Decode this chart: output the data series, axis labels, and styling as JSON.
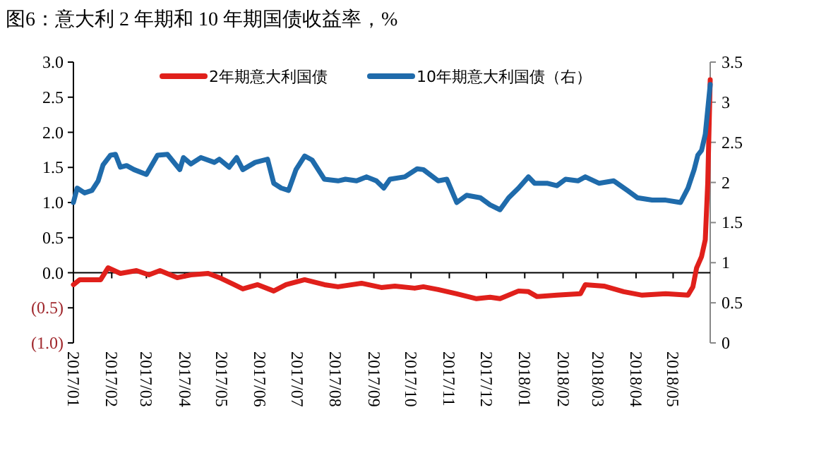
{
  "chart_data": {
    "type": "line",
    "title": "图6：意大利 2 年期和 10 年期国债收益率，%",
    "xlim": [
      "2017-01-01",
      "2018-05-31"
    ],
    "xticks": [
      {
        "value": "2017-01",
        "label": "2017/01"
      },
      {
        "value": "2017-02",
        "label": "2017/02"
      },
      {
        "value": "2017-03",
        "label": "2017/03"
      },
      {
        "value": "2017-04",
        "label": "2017/04"
      },
      {
        "value": "2017-05",
        "label": "2017/05"
      },
      {
        "value": "2017-06",
        "label": "2017/06"
      },
      {
        "value": "2017-07",
        "label": "2017/07"
      },
      {
        "value": "2017-08",
        "label": "2017/08"
      },
      {
        "value": "2017-09",
        "label": "2017/09"
      },
      {
        "value": "2017-10",
        "label": "2017/10"
      },
      {
        "value": "2017-11",
        "label": "2017/11"
      },
      {
        "value": "2017-12",
        "label": "2017/12"
      },
      {
        "value": "2018-01",
        "label": "2018/01"
      },
      {
        "value": "2018-02",
        "label": "2018/02"
      },
      {
        "value": "2018-03",
        "label": "2018/03"
      },
      {
        "value": "2018-04",
        "label": "2018/04"
      },
      {
        "value": "2018-05",
        "label": "2018/05"
      }
    ],
    "ylim": [
      -1.0,
      3.0
    ],
    "yticks": [
      {
        "value": 3.0,
        "label": "3.0"
      },
      {
        "value": 2.5,
        "label": "2.5"
      },
      {
        "value": 2.0,
        "label": "2.0"
      },
      {
        "value": 1.5,
        "label": "1.5"
      },
      {
        "value": 1.0,
        "label": "1.0"
      },
      {
        "value": 0.5,
        "label": "0.5"
      },
      {
        "value": 0.0,
        "label": "0.0"
      },
      {
        "value": -0.5,
        "label": "(0.5)"
      },
      {
        "value": -1.0,
        "label": "(1.0)"
      }
    ],
    "y2lim": [
      0,
      3.5
    ],
    "y2ticks": [
      0,
      0.5,
      1,
      1.5,
      2,
      2.5,
      3,
      3.5
    ],
    "legend": "top",
    "marker": "none",
    "line_style": "solid",
    "series": [
      {
        "name": "2年期意大利国债",
        "color": "#e0201b",
        "x": [
          "2017-01-01",
          "2017-01-06",
          "2017-01-23",
          "2017-01-29",
          "2017-02-08",
          "2017-02-21",
          "2017-03-03",
          "2017-03-12",
          "2017-03-26",
          "2017-04-06",
          "2017-04-20",
          "2017-04-29",
          "2017-05-11",
          "2017-05-18",
          "2017-05-30",
          "2017-06-12",
          "2017-06-22",
          "2017-07-07",
          "2017-07-23",
          "2017-08-03",
          "2017-08-22",
          "2017-09-07",
          "2017-09-18",
          "2017-10-04",
          "2017-10-11",
          "2017-10-23",
          "2017-11-07",
          "2017-11-23",
          "2017-12-04",
          "2017-12-12",
          "2017-12-27",
          "2018-01-04",
          "2018-01-11",
          "2018-01-27",
          "2018-02-15",
          "2018-02-19",
          "2018-03-06",
          "2018-03-22",
          "2018-04-06",
          "2018-04-25",
          "2018-05-13",
          "2018-05-17",
          "2018-05-20",
          "2018-05-24",
          "2018-05-27",
          "2018-05-29",
          "2018-05-31"
        ],
        "values": [
          -0.17,
          -0.1,
          -0.1,
          0.07,
          -0.01,
          0.03,
          -0.03,
          0.03,
          -0.07,
          -0.03,
          -0.01,
          -0.07,
          -0.17,
          -0.23,
          -0.17,
          -0.26,
          -0.17,
          -0.1,
          -0.17,
          -0.2,
          -0.15,
          -0.21,
          -0.19,
          -0.22,
          -0.2,
          -0.24,
          -0.3,
          -0.37,
          -0.35,
          -0.37,
          -0.26,
          -0.27,
          -0.34,
          -0.32,
          -0.3,
          -0.17,
          -0.19,
          -0.27,
          -0.32,
          -0.3,
          -0.32,
          -0.2,
          0.07,
          0.23,
          0.47,
          1.28,
          2.75
        ]
      },
      {
        "name": "10年期意大利国债（右）",
        "color": "#1f6bab",
        "axis": "y2",
        "x": [
          "2017-01-01",
          "2017-01-04",
          "2017-01-10",
          "2017-01-16",
          "2017-01-21",
          "2017-01-25",
          "2017-01-31",
          "2017-02-04",
          "2017-02-08",
          "2017-02-13",
          "2017-02-19",
          "2017-03-01",
          "2017-03-10",
          "2017-03-18",
          "2017-03-28",
          "2017-03-31",
          "2017-04-06",
          "2017-04-14",
          "2017-04-25",
          "2017-04-29",
          "2017-05-07",
          "2017-05-13",
          "2017-05-18",
          "2017-05-28",
          "2017-06-07",
          "2017-06-12",
          "2017-06-18",
          "2017-06-24",
          "2017-06-30",
          "2017-07-07",
          "2017-07-13",
          "2017-07-23",
          "2017-08-03",
          "2017-08-09",
          "2017-08-18",
          "2017-08-26",
          "2017-09-03",
          "2017-09-09",
          "2017-09-14",
          "2017-09-26",
          "2017-10-06",
          "2017-10-11",
          "2017-10-23",
          "2017-10-30",
          "2017-11-07",
          "2017-11-15",
          "2017-11-26",
          "2017-12-04",
          "2017-12-12",
          "2017-12-19",
          "2017-12-27",
          "2018-01-04",
          "2018-01-09",
          "2018-01-19",
          "2018-01-27",
          "2018-02-03",
          "2018-02-13",
          "2018-02-19",
          "2018-03-02",
          "2018-03-14",
          "2018-03-25",
          "2018-04-02",
          "2018-04-14",
          "2018-04-25",
          "2018-05-07",
          "2018-05-13",
          "2018-05-18",
          "2018-05-21",
          "2018-05-24",
          "2018-05-27",
          "2018-05-31"
        ],
        "values": [
          1.75,
          1.93,
          1.87,
          1.9,
          2.02,
          2.22,
          2.34,
          2.35,
          2.19,
          2.21,
          2.16,
          2.1,
          2.34,
          2.35,
          2.16,
          2.31,
          2.23,
          2.31,
          2.25,
          2.29,
          2.19,
          2.31,
          2.16,
          2.25,
          2.29,
          1.99,
          1.93,
          1.9,
          2.16,
          2.33,
          2.28,
          2.04,
          2.02,
          2.04,
          2.02,
          2.07,
          2.02,
          1.93,
          2.04,
          2.07,
          2.17,
          2.16,
          2.02,
          2.04,
          1.75,
          1.84,
          1.81,
          1.72,
          1.66,
          1.81,
          1.93,
          2.07,
          1.99,
          1.99,
          1.96,
          2.04,
          2.02,
          2.07,
          1.99,
          2.02,
          1.9,
          1.81,
          1.78,
          1.78,
          1.75,
          1.93,
          2.16,
          2.34,
          2.4,
          2.6,
          3.22
        ]
      }
    ]
  }
}
